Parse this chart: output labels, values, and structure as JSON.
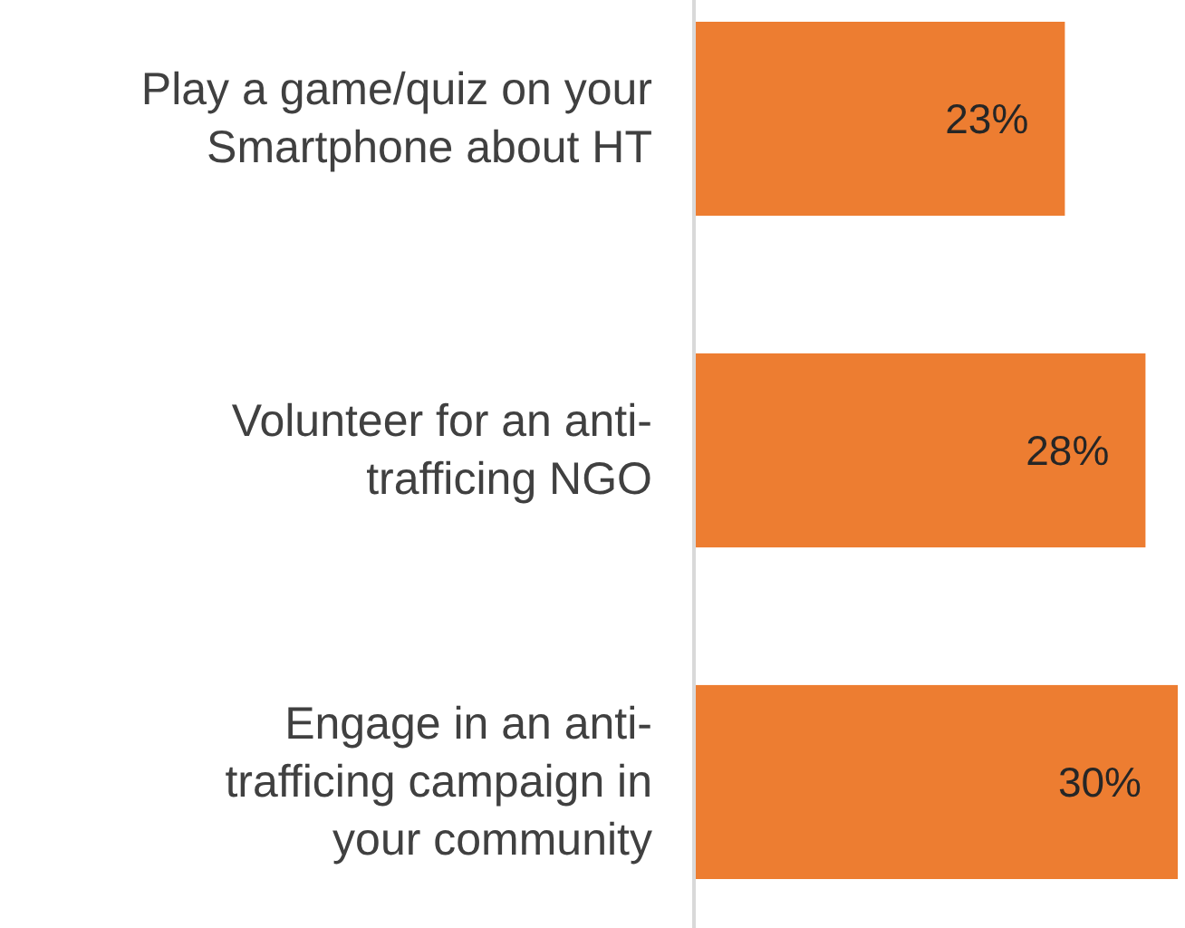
{
  "chart_data": {
    "type": "bar",
    "orientation": "horizontal",
    "categories": [
      "Play a game/quiz on your Smartphone about HT",
      "Volunteer for an anti-trafficing NGO",
      "Engage in an anti-trafficing campaign in your community"
    ],
    "values": [
      23,
      28,
      30
    ],
    "value_labels": [
      "23%",
      "28%",
      "30%"
    ],
    "color": "#ed7d31",
    "xlim": [
      0,
      30
    ]
  }
}
